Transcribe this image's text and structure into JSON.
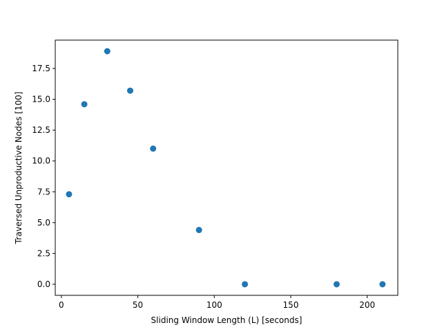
{
  "chart_data": {
    "type": "scatter",
    "title": "",
    "xlabel": "Sliding Window Length (L) [seconds]",
    "ylabel": "Traversed Unproductive Nodes [100]",
    "xlim": [
      -4,
      220
    ],
    "ylim": [
      -0.9,
      19.8
    ],
    "xticks": [
      0,
      50,
      100,
      150,
      200
    ],
    "xtick_labels": [
      "0",
      "50",
      "100",
      "150",
      "200"
    ],
    "yticks": [
      0.0,
      2.5,
      5.0,
      7.5,
      10.0,
      12.5,
      15.0,
      17.5
    ],
    "ytick_labels": [
      "0.0",
      "2.5",
      "5.0",
      "7.5",
      "10.0",
      "12.5",
      "15.0",
      "17.5"
    ],
    "grid": false,
    "legend": "none",
    "series": [
      {
        "color": "#1f77b4",
        "x": [
          5,
          15,
          30,
          45,
          60,
          90,
          120,
          180,
          210
        ],
        "y": [
          7.3,
          14.6,
          18.9,
          15.7,
          11.0,
          4.4,
          0.0,
          0.0,
          0.0
        ]
      }
    ]
  }
}
